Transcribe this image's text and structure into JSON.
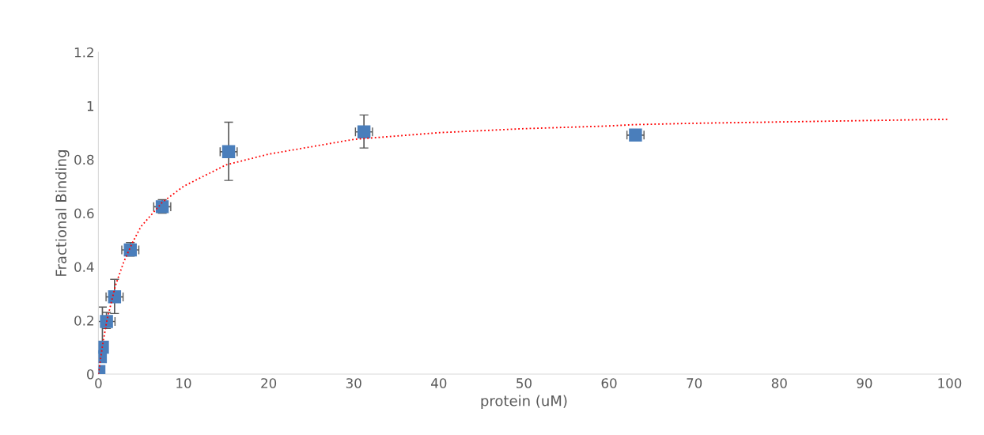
{
  "chart_data": {
    "type": "scatter",
    "xlabel": "protein (uM)",
    "ylabel": "Fractional Binding",
    "xlim": [
      0,
      100
    ],
    "xticks": [
      0,
      10,
      20,
      30,
      40,
      50,
      60,
      70,
      80,
      90,
      100
    ],
    "ylim": [
      0,
      1.2
    ],
    "yticks": [
      0,
      0.2,
      0.4,
      0.6,
      0.8,
      1,
      1.2
    ],
    "grid": false,
    "legend": false,
    "series": [
      {
        "color": "#4a7ebb",
        "marker": "square",
        "x": [
          0.06,
          0.23,
          0.47,
          0.95,
          1.9,
          3.75,
          7.5,
          15.3,
          31.2,
          63.1
        ],
        "values": [
          0.01,
          0.065,
          0.1,
          0.196,
          0.288,
          0.463,
          0.624,
          0.829,
          0.903,
          0.891
        ],
        "errors": [
          null,
          null,
          [
            0.07,
            0.25
          ],
          [
            0.17,
            0.23
          ],
          [
            0.226,
            0.353
          ],
          [
            0.44,
            0.49
          ],
          [
            0.6,
            0.65
          ],
          [
            0.722,
            0.939
          ],
          [
            0.843,
            0.966
          ],
          null
        ],
        "xerrors": [
          null,
          null,
          null,
          1,
          1,
          1,
          1,
          1,
          1,
          1
        ]
      },
      {
        "type": "line",
        "color": "#ff0000",
        "line_style": "dotted",
        "marker": "none",
        "x": [
          0,
          0.5,
          1,
          2,
          3,
          4,
          5,
          7.5,
          10,
          15,
          20,
          30,
          40,
          50,
          60,
          63,
          70,
          80,
          90,
          100
        ],
        "values": [
          0,
          0.11,
          0.2,
          0.33,
          0.42,
          0.49,
          0.55,
          0.64,
          0.7,
          0.78,
          0.82,
          0.875,
          0.9,
          0.915,
          0.925,
          0.93,
          0.935,
          0.94,
          0.945,
          0.95
        ]
      }
    ]
  }
}
